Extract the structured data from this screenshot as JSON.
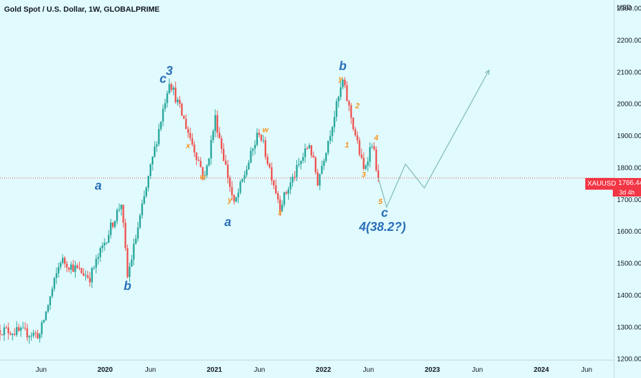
{
  "header": {
    "title": "Gold Spot / U.S. Dollar, 1W, GLOBALPRIME",
    "currency": "USD"
  },
  "price_badge": {
    "symbol": "XAUUSD",
    "value": "1766.44",
    "countdown": "3d 4h"
  },
  "colors": {
    "background": "#e0fafe",
    "up": "#26a69a",
    "down": "#ef5350",
    "wave_primary": "#2a6fb8",
    "wave_minor": "#f7931a",
    "projection": "#7fb9b0",
    "current_price_line": "#ef5350"
  },
  "chart_data": {
    "type": "candlestick",
    "title": "Gold Spot / U.S. Dollar, 1W, GLOBALPRIME",
    "y_axis": {
      "unit": "USD",
      "ticks": [
        1200,
        1300,
        1400,
        1500,
        1600,
        1700,
        1800,
        1900,
        2000,
        2100,
        2200,
        2300
      ],
      "tick_labels": [
        "1200.00",
        "1300.00",
        "1400.00",
        "1500.00",
        "1600.00",
        "1700.00",
        "1800.00",
        "1900.00",
        "2000.00",
        "2100.00",
        "2200.00",
        "2300.00"
      ],
      "range": [
        1195,
        2325
      ]
    },
    "x_axis": {
      "tick_labels": [
        {
          "label": "Jun",
          "date": "2019-06-01"
        },
        {
          "label": "2020",
          "date": "2020-01-01"
        },
        {
          "label": "Jun",
          "date": "2020-06-01"
        },
        {
          "label": "2021",
          "date": "2021-01-01"
        },
        {
          "label": "Jun",
          "date": "2021-06-01"
        },
        {
          "label": "2022",
          "date": "2022-01-01"
        },
        {
          "label": "Jun",
          "date": "2022-06-01"
        },
        {
          "label": "2023",
          "date": "2023-01-01"
        },
        {
          "label": "Jun",
          "date": "2023-06-01"
        },
        {
          "label": "2024",
          "date": "2024-01-01"
        },
        {
          "label": "Jun",
          "date": "2024-06-01"
        }
      ],
      "range": [
        "2019-01-14",
        "2024-09-01"
      ]
    },
    "current_price": 1766.44,
    "key_prices": [
      {
        "date": "2019-01-14",
        "price": 1290
      },
      {
        "date": "2019-05-27",
        "price": 1275
      },
      {
        "date": "2019-08-05",
        "price": 1510
      },
      {
        "date": "2019-11-11",
        "price": 1455
      },
      {
        "date": "2020-02-24",
        "price": 1690
      },
      {
        "date": "2020-03-16",
        "price": 1455
      },
      {
        "date": "2020-08-03",
        "price": 2075
      },
      {
        "date": "2020-11-30",
        "price": 1765
      },
      {
        "date": "2021-01-04",
        "price": 1955
      },
      {
        "date": "2021-03-08",
        "price": 1680
      },
      {
        "date": "2021-05-31",
        "price": 1915
      },
      {
        "date": "2021-08-09",
        "price": 1680
      },
      {
        "date": "2021-11-15",
        "price": 1875
      },
      {
        "date": "2021-12-13",
        "price": 1755
      },
      {
        "date": "2022-03-07",
        "price": 2070
      },
      {
        "date": "2022-05-16",
        "price": 1790
      },
      {
        "date": "2022-06-13",
        "price": 1880
      },
      {
        "date": "2022-07-04",
        "price": 1766.44
      }
    ],
    "wave_labels": [
      {
        "text": "c",
        "date": "2020-07-13",
        "price": 2065,
        "degree": "primary"
      },
      {
        "text": "3",
        "date": "2020-08-03",
        "price": 2090,
        "degree": "primary"
      },
      {
        "text": "a",
        "date": "2019-12-09",
        "price": 1730,
        "degree": "primary"
      },
      {
        "text": "b",
        "date": "2020-03-16",
        "price": 1415,
        "degree": "primary"
      },
      {
        "text": "a",
        "date": "2021-02-15",
        "price": 1615,
        "degree": "primary"
      },
      {
        "text": "b",
        "date": "2022-03-07",
        "price": 2105,
        "degree": "primary"
      },
      {
        "text": "c",
        "date": "2022-07-25",
        "price": 1645,
        "degree": "primary"
      },
      {
        "text": "4(38.2?)",
        "date": "2022-07-18",
        "price": 1600,
        "degree": "primary"
      },
      {
        "text": "x",
        "date": "2020-10-05",
        "price": 1860,
        "degree": "minor"
      },
      {
        "text": "w",
        "date": "2020-11-23",
        "price": 1762,
        "degree": "minor"
      },
      {
        "text": "y",
        "date": "2021-02-22",
        "price": 1690,
        "degree": "minor"
      },
      {
        "text": "w",
        "date": "2021-06-21",
        "price": 1910,
        "degree": "minor"
      },
      {
        "text": "x",
        "date": "2021-08-09",
        "price": 1650,
        "degree": "minor"
      },
      {
        "text": "y",
        "date": "2022-02-28",
        "price": 2070,
        "degree": "minor"
      },
      {
        "text": "2",
        "date": "2022-04-25",
        "price": 1985,
        "degree": "minor"
      },
      {
        "text": "1",
        "date": "2022-03-21",
        "price": 1862,
        "degree": "minor"
      },
      {
        "text": "4",
        "date": "2022-06-27",
        "price": 1885,
        "degree": "minor"
      },
      {
        "text": "3",
        "date": "2022-05-16",
        "price": 1770,
        "degree": "minor"
      },
      {
        "text": "5",
        "date": "2022-07-11",
        "price": 1685,
        "degree": "minor"
      }
    ],
    "projection": [
      {
        "date": "2022-07-04",
        "price": 1766.44
      },
      {
        "date": "2022-08-01",
        "price": 1675
      },
      {
        "date": "2022-10-03",
        "price": 1810
      },
      {
        "date": "2022-12-05",
        "price": 1735
      },
      {
        "date": "2023-07-10",
        "price": 2105
      }
    ]
  }
}
